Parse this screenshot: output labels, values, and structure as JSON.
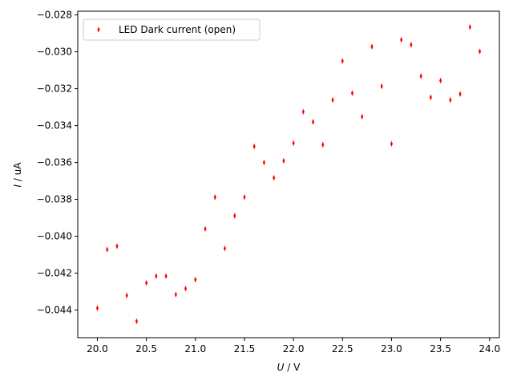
{
  "chart_data": {
    "type": "scatter",
    "title": "",
    "xlabel_var": "U",
    "xlabel_unit": " / V",
    "ylabel_var": "I",
    "ylabel_unit": " / uA",
    "xlim": [
      19.8,
      24.1
    ],
    "ylim": [
      -0.0455,
      -0.0278
    ],
    "xticks": [
      20.0,
      20.5,
      21.0,
      21.5,
      22.0,
      22.5,
      23.0,
      23.5,
      24.0
    ],
    "xtick_labels": [
      "20.0",
      "20.5",
      "21.0",
      "21.5",
      "22.0",
      "22.5",
      "23.0",
      "23.5",
      "24.0"
    ],
    "yticks": [
      -0.044,
      -0.042,
      -0.04,
      -0.038,
      -0.036,
      -0.034,
      -0.032,
      -0.03,
      -0.028
    ],
    "ytick_labels": [
      "−0.044",
      "−0.042",
      "−0.040",
      "−0.038",
      "−0.036",
      "−0.034",
      "−0.032",
      "−0.030",
      "−0.028"
    ],
    "grid": false,
    "legend_position": "top-left",
    "series": [
      {
        "name": "LED Dark current (open)",
        "color": "#ff0000",
        "marker": "thin-diamond",
        "x": [
          20.0,
          20.1,
          20.2,
          20.3,
          20.4,
          20.5,
          20.6,
          20.7,
          20.8,
          20.9,
          21.0,
          21.1,
          21.2,
          21.3,
          21.4,
          21.5,
          21.6,
          21.7,
          21.8,
          21.9,
          22.0,
          22.1,
          22.2,
          22.3,
          22.4,
          22.5,
          22.6,
          22.7,
          22.8,
          22.9,
          23.0,
          23.1,
          23.2,
          23.3,
          23.4,
          23.5,
          23.6,
          23.7,
          23.8,
          23.9
        ],
        "y": [
          -0.0439,
          -0.04072,
          -0.04054,
          -0.04321,
          -0.04461,
          -0.04253,
          -0.04216,
          -0.04216,
          -0.04316,
          -0.04284,
          -0.04235,
          -0.0396,
          -0.03788,
          -0.04066,
          -0.03889,
          -0.03788,
          -0.03513,
          -0.036,
          -0.03683,
          -0.03591,
          -0.03495,
          -0.03325,
          -0.0338,
          -0.03504,
          -0.03261,
          -0.0305,
          -0.03224,
          -0.03352,
          -0.02972,
          -0.03187,
          -0.03499,
          -0.02935,
          -0.02962,
          -0.03132,
          -0.03247,
          -0.03156,
          -0.03261,
          -0.03229,
          -0.02866,
          -0.02998
        ]
      }
    ]
  }
}
